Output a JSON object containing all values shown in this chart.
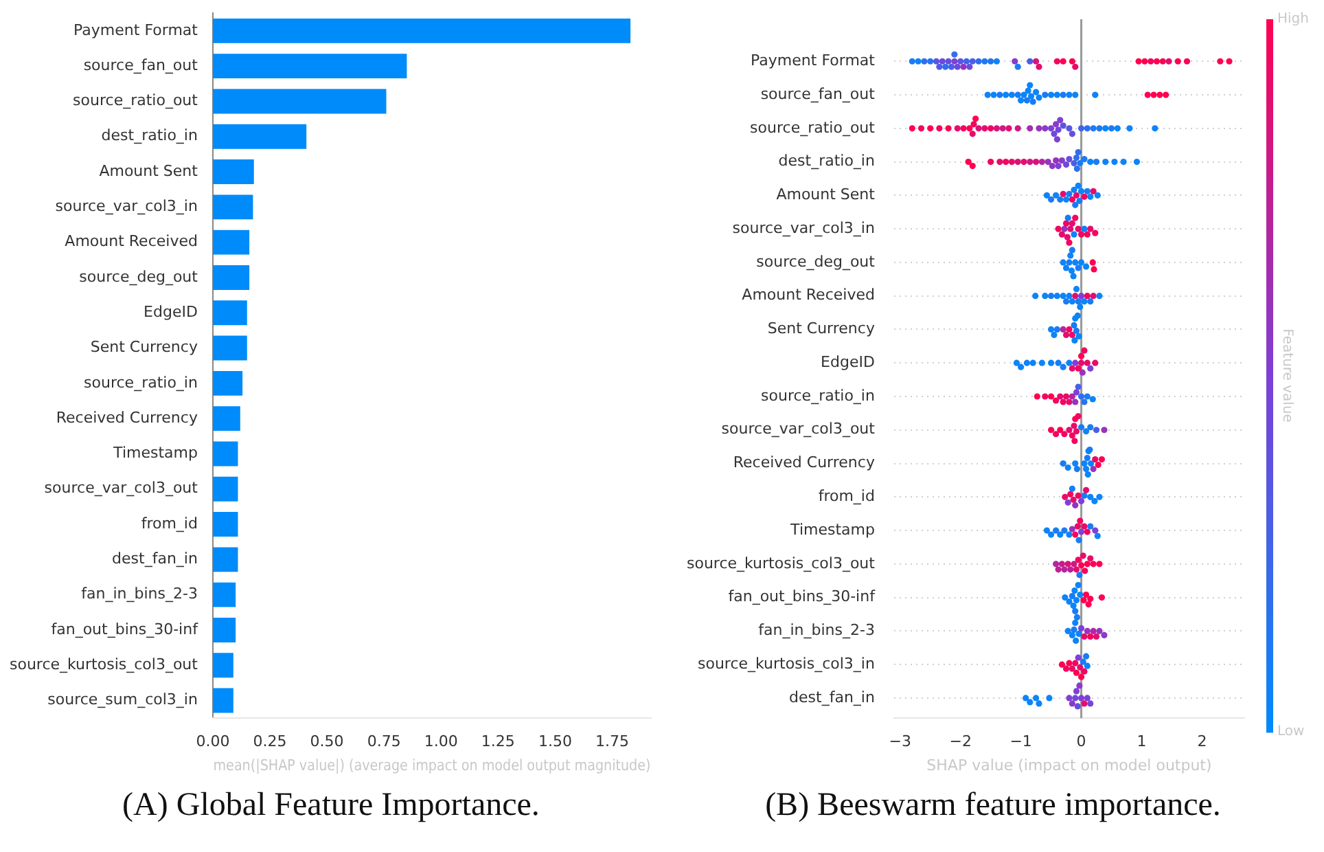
{
  "chart_data": [
    {
      "type": "bar",
      "orientation": "horizontal",
      "title": "(A) Global Feature Importance.",
      "xlabel": "mean(|SHAP value|) (average impact on model output magnitude)",
      "categories": [
        "Payment Format",
        "source_fan_out",
        "source_ratio_out",
        "dest_ratio_in",
        "Amount Sent",
        "source_var_col3_in",
        "Amount Received",
        "source_deg_out",
        "EdgeID",
        "Sent Currency",
        "source_ratio_in",
        "Received Currency",
        "Timestamp",
        "source_var_col3_out",
        "from_id",
        "dest_fan_in",
        "fan_in_bins_2-3",
        "fan_out_bins_30-inf",
        "source_kurtosis_col3_out",
        "source_sum_col3_in"
      ],
      "values": [
        1.83,
        0.85,
        0.76,
        0.41,
        0.18,
        0.176,
        0.16,
        0.16,
        0.15,
        0.15,
        0.13,
        0.12,
        0.11,
        0.11,
        0.11,
        0.11,
        0.1,
        0.1,
        0.09,
        0.09
      ],
      "color": "#008bfb",
      "xlim": [
        0,
        1.92
      ],
      "xticks": [
        {
          "value": 0,
          "label": "0.00"
        },
        {
          "value": 0.25,
          "label": "0.25"
        },
        {
          "value": 0.5,
          "label": "0.50"
        },
        {
          "value": 0.75,
          "label": "0.75"
        },
        {
          "value": 1,
          "label": "1.00"
        },
        {
          "value": 1.25,
          "label": "1.25"
        },
        {
          "value": 1.5,
          "label": "1.50"
        },
        {
          "value": 1.75,
          "label": "1.75"
        }
      ],
      "grid": false,
      "legend": false
    },
    {
      "type": "scatter",
      "orientation": "horizontal",
      "title": "(B) Beeswarm feature importance.",
      "xlabel": "SHAP value (impact on model output)",
      "clabel": "Feature value",
      "categories": [
        "Payment Format",
        "source_fan_out",
        "source_ratio_out",
        "dest_ratio_in",
        "Amount Sent",
        "source_var_col3_in",
        "source_deg_out",
        "Amount Received",
        "Sent Currency",
        "EdgeID",
        "source_ratio_in",
        "source_var_col3_out",
        "Received Currency",
        "from_id",
        "Timestamp",
        "source_kurtosis_col3_out",
        "fan_out_bins_30-inf",
        "fan_in_bins_2-3",
        "source_kurtosis_col3_in",
        "dest_fan_in"
      ],
      "series": [
        {
          "x": [
            "Payment Format",
            "Payment Format",
            "Payment Format",
            "Payment Format",
            "Payment Format",
            "Payment Format",
            "Payment Format",
            "Payment Format",
            "Payment Format",
            "Payment Format",
            "Payment Format",
            "Payment Format",
            "Payment Format",
            "Payment Format",
            "Payment Format",
            "Payment Format",
            "Payment Format",
            "Payment Format",
            "Payment Format",
            "Payment Format",
            "Payment Format",
            "Payment Format",
            "Payment Format",
            "Payment Format",
            "Payment Format",
            "Payment Format",
            "Payment Format",
            "Payment Format",
            "Payment Format",
            "Payment Format",
            "Payment Format",
            "Payment Format",
            "Payment Format",
            "Payment Format",
            "Payment Format",
            "Payment Format",
            "Payment Format",
            "Payment Format",
            "Payment Format",
            "Payment Format",
            "Payment Format"
          ],
          "values": [
            -2.8,
            -2.7,
            -2.6,
            -2.5,
            -2.4,
            -2.35,
            -2.3,
            -2.25,
            -2.2,
            -2.15,
            -2.1,
            -2.1,
            -2.05,
            -2.0,
            -1.95,
            -1.9,
            -1.85,
            -1.8,
            -1.7,
            -1.6,
            -1.5,
            -1.4,
            -1.1,
            -1.05,
            -0.85,
            -0.75,
            -0.7,
            -0.4,
            -0.3,
            -0.15,
            -0.1,
            0.95,
            1.05,
            1.15,
            1.25,
            1.35,
            1.45,
            1.6,
            1.75,
            2.3,
            2.45
          ],
          "colors": [
            "#197cf4",
            "#0d84f7",
            "#326dec",
            "#2675f0",
            "#5857e1",
            "#4c5ee5",
            "#7148da",
            "#326dec",
            "#654fdd",
            "#4c5ee5",
            "#7e40d6",
            "#326dec",
            "#7148da",
            "#5857e1",
            "#9833bc",
            "#3f66e9",
            "#654fdd",
            "#4c5ee5",
            "#326dec",
            "#197cf4",
            "#2675f0",
            "#0d84f7",
            "#8b3ac9",
            "#197cf4",
            "#4c5ee5",
            "#d8137a",
            "#e50d6c",
            "#f2065f",
            "#ff0052",
            "#ff0052",
            "#e50d6c",
            "#ff0052",
            "#ff0052",
            "#f2065f",
            "#ff0052",
            "#ff0052",
            "#e50d6c",
            "#ff0052",
            "#ff0052",
            "#ff0052",
            "#ff0052"
          ]
        },
        {
          "x": [
            "source_fan_out",
            "source_fan_out",
            "source_fan_out",
            "source_fan_out",
            "source_fan_out",
            "source_fan_out",
            "source_fan_out",
            "source_fan_out",
            "source_fan_out",
            "source_fan_out",
            "source_fan_out",
            "source_fan_out",
            "source_fan_out",
            "source_fan_out",
            "source_fan_out",
            "source_fan_out",
            "source_fan_out",
            "source_fan_out",
            "source_fan_out",
            "source_fan_out",
            "source_fan_out",
            "source_fan_out",
            "source_fan_out",
            "source_fan_out",
            "source_fan_out",
            "source_fan_out"
          ],
          "values": [
            -1.55,
            -1.45,
            -1.35,
            -1.25,
            -1.15,
            -1.05,
            -1.0,
            -0.95,
            -0.9,
            -0.88,
            -0.85,
            -0.83,
            -0.8,
            -0.75,
            -0.7,
            -0.6,
            -0.5,
            -0.4,
            -0.3,
            -0.2,
            -0.1,
            0.23,
            1.1,
            1.2,
            1.3,
            1.4
          ],
          "colors": [
            "#0d84f7",
            "#0d84f7",
            "#197cf4",
            "#0d84f7",
            "#0d84f7",
            "#197cf4",
            "#0d84f7",
            "#0d84f7",
            "#197cf4",
            "#0d84f7",
            "#0d84f7",
            "#0d84f7",
            "#197cf4",
            "#0d84f7",
            "#0d84f7",
            "#197cf4",
            "#0d84f7",
            "#0d84f7",
            "#197cf4",
            "#0d84f7",
            "#0d84f7",
            "#0d84f7",
            "#ff0052",
            "#ff0052",
            "#ff0052",
            "#ff0052"
          ]
        },
        {
          "x": [
            "source_ratio_out",
            "source_ratio_out",
            "source_ratio_out",
            "source_ratio_out",
            "source_ratio_out",
            "source_ratio_out",
            "source_ratio_out",
            "source_ratio_out",
            "source_ratio_out",
            "source_ratio_out",
            "source_ratio_out",
            "source_ratio_out",
            "source_ratio_out",
            "source_ratio_out",
            "source_ratio_out",
            "source_ratio_out",
            "source_ratio_out",
            "source_ratio_out",
            "source_ratio_out",
            "source_ratio_out",
            "source_ratio_out",
            "source_ratio_out",
            "source_ratio_out",
            "source_ratio_out",
            "source_ratio_out",
            "source_ratio_out",
            "source_ratio_out",
            "source_ratio_out",
            "source_ratio_out",
            "source_ratio_out",
            "source_ratio_out",
            "source_ratio_out",
            "source_ratio_out",
            "source_ratio_out",
            "source_ratio_out",
            "source_ratio_out",
            "source_ratio_out",
            "source_ratio_out",
            "source_ratio_out"
          ],
          "values": [
            -2.8,
            -2.65,
            -2.5,
            -2.35,
            -2.2,
            -2.05,
            -1.95,
            -1.85,
            -1.8,
            -1.78,
            -1.75,
            -1.7,
            -1.6,
            -1.5,
            -1.4,
            -1.3,
            -1.2,
            -1.05,
            -0.85,
            -0.7,
            -0.6,
            -0.5,
            -0.45,
            -0.42,
            -0.4,
            -0.38,
            -0.35,
            -0.3,
            -0.2,
            -0.15,
            0.0,
            0.1,
            0.2,
            0.3,
            0.4,
            0.5,
            0.6,
            0.8,
            1.22
          ],
          "colors": [
            "#ff0052",
            "#f2065f",
            "#ff0052",
            "#f2065f",
            "#ff0052",
            "#e50d6c",
            "#f2065f",
            "#ff0052",
            "#e50d6c",
            "#f2065f",
            "#ff0052",
            "#d8137a",
            "#e50d6c",
            "#f2065f",
            "#d8137a",
            "#cb1a87",
            "#e50d6c",
            "#cb1a87",
            "#a52dae",
            "#9833bc",
            "#8b3ac9",
            "#7e40d6",
            "#7148da",
            "#8b3ac9",
            "#7e40d6",
            "#7148da",
            "#7e40d6",
            "#654fdd",
            "#5857e1",
            "#654fdd",
            "#3f66e9",
            "#326dec",
            "#197cf4",
            "#197cf4",
            "#0d84f7",
            "#197cf4",
            "#0d84f7",
            "#0d84f7",
            "#0d84f7"
          ]
        },
        {
          "x": [
            "dest_ratio_in",
            "dest_ratio_in",
            "dest_ratio_in",
            "dest_ratio_in",
            "dest_ratio_in",
            "dest_ratio_in",
            "dest_ratio_in",
            "dest_ratio_in",
            "dest_ratio_in",
            "dest_ratio_in",
            "dest_ratio_in",
            "dest_ratio_in",
            "dest_ratio_in",
            "dest_ratio_in",
            "dest_ratio_in",
            "dest_ratio_in",
            "dest_ratio_in",
            "dest_ratio_in",
            "dest_ratio_in",
            "dest_ratio_in",
            "dest_ratio_in",
            "dest_ratio_in",
            "dest_ratio_in",
            "dest_ratio_in",
            "dest_ratio_in",
            "dest_ratio_in",
            "dest_ratio_in",
            "dest_ratio_in",
            "dest_ratio_in",
            "dest_ratio_in"
          ],
          "values": [
            -1.87,
            -1.8,
            -1.5,
            -1.35,
            -1.25,
            -1.15,
            -1.05,
            -0.95,
            -0.85,
            -0.75,
            -0.65,
            -0.55,
            -0.48,
            -0.42,
            -0.38,
            -0.32,
            -0.25,
            -0.2,
            -0.12,
            -0.08,
            -0.07,
            -0.05,
            -0.02,
            0.05,
            0.15,
            0.25,
            0.4,
            0.55,
            0.7,
            0.92
          ],
          "colors": [
            "#ff0052",
            "#ff0052",
            "#f2065f",
            "#e50d6c",
            "#f2065f",
            "#e50d6c",
            "#d8137a",
            "#e50d6c",
            "#cb1a87",
            "#d8137a",
            "#b226a1",
            "#9833bc",
            "#8b3ac9",
            "#9833bc",
            "#7e40d6",
            "#8b3ac9",
            "#7148da",
            "#654fdd",
            "#4c5ee5",
            "#326dec",
            "#2675f0",
            "#326dec",
            "#197cf4",
            "#197cf4",
            "#0d84f7",
            "#197cf4",
            "#0d84f7",
            "#0d84f7",
            "#0d84f7",
            "#0d84f7"
          ]
        },
        {
          "x": [
            "Amount Sent",
            "Amount Sent",
            "Amount Sent",
            "Amount Sent",
            "Amount Sent",
            "Amount Sent",
            "Amount Sent",
            "Amount Sent",
            "Amount Sent",
            "Amount Sent",
            "Amount Sent",
            "Amount Sent",
            "Amount Sent",
            "Amount Sent",
            "Amount Sent",
            "Amount Sent",
            "Amount Sent",
            "Amount Sent",
            "Amount Sent"
          ],
          "values": [
            -0.57,
            -0.5,
            -0.42,
            -0.35,
            -0.3,
            -0.25,
            -0.2,
            -0.15,
            -0.12,
            -0.1,
            -0.08,
            -0.05,
            -0.03,
            0.0,
            0.05,
            0.1,
            0.15,
            0.2,
            0.27
          ],
          "colors": [
            "#0d84f7",
            "#197cf4",
            "#0d84f7",
            "#197cf4",
            "#e50d6c",
            "#0d84f7",
            "#197cf4",
            "#f2065f",
            "#0d84f7",
            "#197cf4",
            "#e50d6c",
            "#0d84f7",
            "#197cf4",
            "#0d84f7",
            "#f2065f",
            "#197cf4",
            "#0d84f7",
            "#e50d6c",
            "#0d84f7"
          ]
        },
        {
          "x": [
            "source_var_col3_in",
            "source_var_col3_in",
            "source_var_col3_in",
            "source_var_col3_in",
            "source_var_col3_in",
            "source_var_col3_in",
            "source_var_col3_in",
            "source_var_col3_in",
            "source_var_col3_in",
            "source_var_col3_in",
            "source_var_col3_in",
            "source_var_col3_in",
            "source_var_col3_in",
            "source_var_col3_in",
            "source_var_col3_in",
            "source_var_col3_in",
            "source_var_col3_in"
          ],
          "values": [
            -0.38,
            -0.32,
            -0.28,
            -0.25,
            -0.23,
            -0.22,
            -0.2,
            -0.18,
            -0.15,
            -0.12,
            -0.1,
            -0.05,
            0.0,
            0.05,
            0.1,
            0.15,
            0.23
          ],
          "colors": [
            "#f2065f",
            "#e50d6c",
            "#9833bc",
            "#f2065f",
            "#e50d6c",
            "#197cf4",
            "#f2065f",
            "#d8137a",
            "#e50d6c",
            "#0d84f7",
            "#f2065f",
            "#e50d6c",
            "#f2065f",
            "#197cf4",
            "#f2065f",
            "#e50d6c",
            "#f2065f"
          ]
        },
        {
          "x": [
            "source_deg_out",
            "source_deg_out",
            "source_deg_out",
            "source_deg_out",
            "source_deg_out",
            "source_deg_out",
            "source_deg_out",
            "source_deg_out",
            "source_deg_out",
            "source_deg_out",
            "source_deg_out",
            "source_deg_out",
            "source_deg_out"
          ],
          "values": [
            -0.3,
            -0.25,
            -0.2,
            -0.18,
            -0.16,
            -0.15,
            -0.13,
            -0.1,
            -0.05,
            0.0,
            0.08,
            0.19,
            0.21
          ],
          "colors": [
            "#0d84f7",
            "#0d84f7",
            "#197cf4",
            "#0d84f7",
            "#0d84f7",
            "#197cf4",
            "#0d84f7",
            "#0d84f7",
            "#197cf4",
            "#0d84f7",
            "#0d84f7",
            "#ff0052",
            "#ff0052"
          ]
        },
        {
          "x": [
            "Amount Received",
            "Amount Received",
            "Amount Received",
            "Amount Received",
            "Amount Received",
            "Amount Received",
            "Amount Received",
            "Amount Received",
            "Amount Received",
            "Amount Received",
            "Amount Received",
            "Amount Received",
            "Amount Received",
            "Amount Received",
            "Amount Received",
            "Amount Received",
            "Amount Received",
            "Amount Received"
          ],
          "values": [
            -0.76,
            -0.6,
            -0.5,
            -0.4,
            -0.3,
            -0.25,
            -0.2,
            -0.15,
            -0.1,
            -0.08,
            -0.05,
            -0.02,
            0.0,
            0.05,
            0.1,
            0.15,
            0.2,
            0.3
          ],
          "colors": [
            "#0d84f7",
            "#0d84f7",
            "#197cf4",
            "#0d84f7",
            "#0d84f7",
            "#197cf4",
            "#0d84f7",
            "#0d84f7",
            "#e50d6c",
            "#0d84f7",
            "#197cf4",
            "#0d84f7",
            "#7e40d6",
            "#0d84f7",
            "#f2065f",
            "#197cf4",
            "#e50d6c",
            "#0d84f7"
          ]
        },
        {
          "x": [
            "Sent Currency",
            "Sent Currency",
            "Sent Currency",
            "Sent Currency",
            "Sent Currency",
            "Sent Currency",
            "Sent Currency",
            "Sent Currency",
            "Sent Currency",
            "Sent Currency",
            "Sent Currency",
            "Sent Currency",
            "Sent Currency"
          ],
          "values": [
            -0.5,
            -0.45,
            -0.4,
            -0.3,
            -0.25,
            -0.2,
            -0.15,
            -0.12,
            -0.11,
            -0.1,
            -0.08,
            -0.06,
            -0.04
          ],
          "colors": [
            "#0d84f7",
            "#0d84f7",
            "#197cf4",
            "#b226a1",
            "#e50d6c",
            "#f2065f",
            "#e50d6c",
            "#197cf4",
            "#0d84f7",
            "#0d84f7",
            "#197cf4",
            "#0d84f7",
            "#0d84f7"
          ]
        },
        {
          "x": [
            "EdgeID",
            "EdgeID",
            "EdgeID",
            "EdgeID",
            "EdgeID",
            "EdgeID",
            "EdgeID",
            "EdgeID",
            "EdgeID",
            "EdgeID",
            "EdgeID",
            "EdgeID",
            "EdgeID",
            "EdgeID",
            "EdgeID",
            "EdgeID",
            "EdgeID",
            "EdgeID",
            "EdgeID"
          ],
          "values": [
            -1.07,
            -1.0,
            -0.9,
            -0.8,
            -0.65,
            -0.5,
            -0.38,
            -0.3,
            -0.2,
            -0.15,
            -0.1,
            -0.05,
            0.0,
            0.0,
            0.02,
            0.05,
            0.1,
            0.15,
            0.23
          ],
          "colors": [
            "#0d84f7",
            "#0d84f7",
            "#0d84f7",
            "#0d84f7",
            "#0d84f7",
            "#0d84f7",
            "#197cf4",
            "#197cf4",
            "#0d84f7",
            "#e50d6c",
            "#7e40d6",
            "#f2065f",
            "#e50d6c",
            "#ff0052",
            "#9833bc",
            "#f2065f",
            "#e50d6c",
            "#7e40d6",
            "#e50d6c"
          ]
        },
        {
          "x": [
            "source_ratio_in",
            "source_ratio_in",
            "source_ratio_in",
            "source_ratio_in",
            "source_ratio_in",
            "source_ratio_in",
            "source_ratio_in",
            "source_ratio_in",
            "source_ratio_in",
            "source_ratio_in",
            "source_ratio_in",
            "source_ratio_in",
            "source_ratio_in",
            "source_ratio_in",
            "source_ratio_in",
            "source_ratio_in"
          ],
          "values": [
            -0.73,
            -0.6,
            -0.5,
            -0.42,
            -0.35,
            -0.3,
            -0.25,
            -0.2,
            -0.15,
            -0.1,
            -0.08,
            -0.05,
            0.0,
            0.05,
            0.1,
            0.19
          ],
          "colors": [
            "#ff0052",
            "#f2065f",
            "#ff0052",
            "#f2065f",
            "#e50d6c",
            "#f2065f",
            "#e50d6c",
            "#e50d6c",
            "#b226a1",
            "#9833bc",
            "#7e40d6",
            "#4c5ee5",
            "#326dec",
            "#2675f0",
            "#197cf4",
            "#0d84f7"
          ]
        },
        {
          "x": [
            "source_var_col3_out",
            "source_var_col3_out",
            "source_var_col3_out",
            "source_var_col3_out",
            "source_var_col3_out",
            "source_var_col3_out",
            "source_var_col3_out",
            "source_var_col3_out",
            "source_var_col3_out",
            "source_var_col3_out",
            "source_var_col3_out",
            "source_var_col3_out",
            "source_var_col3_out",
            "source_var_col3_out",
            "source_var_col3_out",
            "source_var_col3_out"
          ],
          "values": [
            -0.5,
            -0.42,
            -0.35,
            -0.28,
            -0.2,
            -0.15,
            -0.12,
            -0.11,
            -0.1,
            -0.08,
            -0.05,
            0.0,
            0.08,
            0.15,
            0.25,
            0.38
          ],
          "colors": [
            "#ff0052",
            "#f2065f",
            "#ff0052",
            "#f2065f",
            "#e50d6c",
            "#f2065f",
            "#e50d6c",
            "#f2065f",
            "#ff0052",
            "#e50d6c",
            "#f2065f",
            "#197cf4",
            "#0d84f7",
            "#197cf4",
            "#4c5ee5",
            "#9833bc"
          ]
        },
        {
          "x": [
            "Received Currency",
            "Received Currency",
            "Received Currency",
            "Received Currency",
            "Received Currency",
            "Received Currency",
            "Received Currency",
            "Received Currency",
            "Received Currency",
            "Received Currency",
            "Received Currency",
            "Received Currency",
            "Received Currency",
            "Received Currency",
            "Received Currency"
          ],
          "values": [
            -0.3,
            -0.22,
            -0.1,
            -0.07,
            0.05,
            0.08,
            0.1,
            0.11,
            0.12,
            0.14,
            0.16,
            0.2,
            0.23,
            0.28,
            0.34
          ],
          "colors": [
            "#197cf4",
            "#0d84f7",
            "#0d84f7",
            "#197cf4",
            "#0d84f7",
            "#0d84f7",
            "#197cf4",
            "#0d84f7",
            "#0d84f7",
            "#197cf4",
            "#0d84f7",
            "#9833bc",
            "#f2065f",
            "#ff0052",
            "#ff0052"
          ]
        },
        {
          "x": [
            "from_id",
            "from_id",
            "from_id",
            "from_id",
            "from_id",
            "from_id",
            "from_id",
            "from_id",
            "from_id",
            "from_id",
            "from_id",
            "from_id",
            "from_id"
          ],
          "values": [
            -0.27,
            -0.22,
            -0.18,
            -0.15,
            -0.13,
            -0.1,
            -0.05,
            0.0,
            0.05,
            0.08,
            0.15,
            0.22,
            0.3
          ],
          "colors": [
            "#e50d6c",
            "#7e40d6",
            "#f2065f",
            "#197cf4",
            "#e50d6c",
            "#9833bc",
            "#f2065f",
            "#7e40d6",
            "#197cf4",
            "#e50d6c",
            "#0d84f7",
            "#0d84f7",
            "#0d84f7"
          ]
        },
        {
          "x": [
            "Timestamp",
            "Timestamp",
            "Timestamp",
            "Timestamp",
            "Timestamp",
            "Timestamp",
            "Timestamp",
            "Timestamp",
            "Timestamp",
            "Timestamp",
            "Timestamp",
            "Timestamp",
            "Timestamp",
            "Timestamp",
            "Timestamp",
            "Timestamp",
            "Timestamp"
          ],
          "values": [
            -0.57,
            -0.5,
            -0.42,
            -0.35,
            -0.28,
            -0.2,
            -0.15,
            -0.1,
            -0.06,
            -0.04,
            -0.02,
            0.0,
            0.05,
            0.1,
            0.15,
            0.23,
            0.27
          ],
          "colors": [
            "#0d84f7",
            "#0d84f7",
            "#197cf4",
            "#0d84f7",
            "#197cf4",
            "#0d84f7",
            "#9833bc",
            "#f2065f",
            "#e50d6c",
            "#197cf4",
            "#f2065f",
            "#7e40d6",
            "#e50d6c",
            "#f2065f",
            "#197cf4",
            "#7e40d6",
            "#0d84f7"
          ]
        },
        {
          "x": [
            "source_kurtosis_col3_out",
            "source_kurtosis_col3_out",
            "source_kurtosis_col3_out",
            "source_kurtosis_col3_out",
            "source_kurtosis_col3_out",
            "source_kurtosis_col3_out",
            "source_kurtosis_col3_out",
            "source_kurtosis_col3_out",
            "source_kurtosis_col3_out",
            "source_kurtosis_col3_out",
            "source_kurtosis_col3_out",
            "source_kurtosis_col3_out",
            "source_kurtosis_col3_out",
            "source_kurtosis_col3_out",
            "source_kurtosis_col3_out",
            "source_kurtosis_col3_out",
            "source_kurtosis_col3_out"
          ],
          "values": [
            -0.42,
            -0.38,
            -0.32,
            -0.28,
            -0.22,
            -0.18,
            -0.12,
            -0.08,
            -0.05,
            -0.03,
            0.0,
            0.03,
            0.06,
            0.1,
            0.15,
            0.2,
            0.3
          ],
          "colors": [
            "#b226a1",
            "#bf2094",
            "#cb1a87",
            "#b226a1",
            "#d8137a",
            "#bf2094",
            "#cb1a87",
            "#e50d6c",
            "#f2065f",
            "#197cf4",
            "#ff0052",
            "#e50d6c",
            "#f2065f",
            "#ff0052",
            "#e50d6c",
            "#ff0052",
            "#ff0052"
          ]
        },
        {
          "x": [
            "fan_out_bins_30-inf",
            "fan_out_bins_30-inf",
            "fan_out_bins_30-inf",
            "fan_out_bins_30-inf",
            "fan_out_bins_30-inf",
            "fan_out_bins_30-inf",
            "fan_out_bins_30-inf",
            "fan_out_bins_30-inf",
            "fan_out_bins_30-inf",
            "fan_out_bins_30-inf",
            "fan_out_bins_30-inf",
            "fan_out_bins_30-inf",
            "fan_out_bins_30-inf",
            "fan_out_bins_30-inf"
          ],
          "values": [
            -0.27,
            -0.2,
            -0.15,
            -0.13,
            -0.11,
            -0.1,
            -0.08,
            -0.05,
            -0.02,
            0.04,
            0.08,
            0.12,
            0.15,
            0.34
          ],
          "colors": [
            "#0d84f7",
            "#0d84f7",
            "#197cf4",
            "#0d84f7",
            "#0d84f7",
            "#197cf4",
            "#0d84f7",
            "#0d84f7",
            "#0d84f7",
            "#ff0052",
            "#ff0052",
            "#ff0052",
            "#ff0052",
            "#ff0052"
          ]
        },
        {
          "x": [
            "fan_in_bins_2-3",
            "fan_in_bins_2-3",
            "fan_in_bins_2-3",
            "fan_in_bins_2-3",
            "fan_in_bins_2-3",
            "fan_in_bins_2-3",
            "fan_in_bins_2-3",
            "fan_in_bins_2-3",
            "fan_in_bins_2-3",
            "fan_in_bins_2-3",
            "fan_in_bins_2-3",
            "fan_in_bins_2-3",
            "fan_in_bins_2-3",
            "fan_in_bins_2-3",
            "fan_in_bins_2-3"
          ],
          "values": [
            -0.22,
            -0.15,
            -0.12,
            -0.1,
            -0.09,
            -0.07,
            -0.04,
            0.0,
            0.05,
            0.1,
            0.15,
            0.2,
            0.25,
            0.3,
            0.38
          ],
          "colors": [
            "#0d84f7",
            "#0d84f7",
            "#197cf4",
            "#0d84f7",
            "#0d84f7",
            "#197cf4",
            "#0d84f7",
            "#7e40d6",
            "#e50d6c",
            "#9833bc",
            "#f2065f",
            "#b226a1",
            "#e50d6c",
            "#9833bc",
            "#8b3ac9"
          ]
        },
        {
          "x": [
            "source_kurtosis_col3_in",
            "source_kurtosis_col3_in",
            "source_kurtosis_col3_in",
            "source_kurtosis_col3_in",
            "source_kurtosis_col3_in",
            "source_kurtosis_col3_in",
            "source_kurtosis_col3_in",
            "source_kurtosis_col3_in",
            "source_kurtosis_col3_in",
            "source_kurtosis_col3_in",
            "source_kurtosis_col3_in",
            "source_kurtosis_col3_in",
            "source_kurtosis_col3_in"
          ],
          "values": [
            -0.32,
            -0.25,
            -0.2,
            -0.15,
            -0.1,
            -0.08,
            -0.05,
            -0.02,
            0.0,
            0.03,
            0.05,
            0.08,
            0.1
          ],
          "colors": [
            "#ff0052",
            "#f2065f",
            "#ff0052",
            "#e50d6c",
            "#f2065f",
            "#ff0052",
            "#7e40d6",
            "#e50d6c",
            "#ff0052",
            "#197cf4",
            "#f2065f",
            "#197cf4",
            "#0d84f7"
          ]
        },
        {
          "x": [
            "dest_fan_in",
            "dest_fan_in",
            "dest_fan_in",
            "dest_fan_in",
            "dest_fan_in",
            "dest_fan_in",
            "dest_fan_in",
            "dest_fan_in",
            "dest_fan_in",
            "dest_fan_in",
            "dest_fan_in",
            "dest_fan_in",
            "dest_fan_in",
            "dest_fan_in",
            "dest_fan_in"
          ],
          "values": [
            -0.92,
            -0.85,
            -0.75,
            -0.7,
            -0.53,
            -0.2,
            -0.15,
            -0.1,
            -0.08,
            -0.06,
            -0.03,
            0.0,
            0.05,
            0.1,
            0.15
          ],
          "colors": [
            "#0d84f7",
            "#0d84f7",
            "#0d84f7",
            "#0d84f7",
            "#0d84f7",
            "#7e40d6",
            "#8b3ac9",
            "#7148da",
            "#7e40d6",
            "#654fdd",
            "#8b3ac9",
            "#7e40d6",
            "#e50d6c",
            "#7e40d6",
            "#7148da"
          ]
        }
      ],
      "xlim": [
        -3.1,
        2.7
      ],
      "xticks": [
        {
          "value": -3,
          "label": "−3"
        },
        {
          "value": -2,
          "label": "−2"
        },
        {
          "value": -1,
          "label": "−1"
        },
        0,
        1,
        2
      ],
      "clim": [
        0,
        1
      ],
      "cticks": [
        {
          "value": 0,
          "label": "Low"
        },
        {
          "value": 1,
          "label": "High"
        }
      ],
      "ref_lines": [
        {
          "axis": "x",
          "value": 0,
          "color": "#999999"
        }
      ],
      "grid": "y",
      "legend": false
    }
  ]
}
